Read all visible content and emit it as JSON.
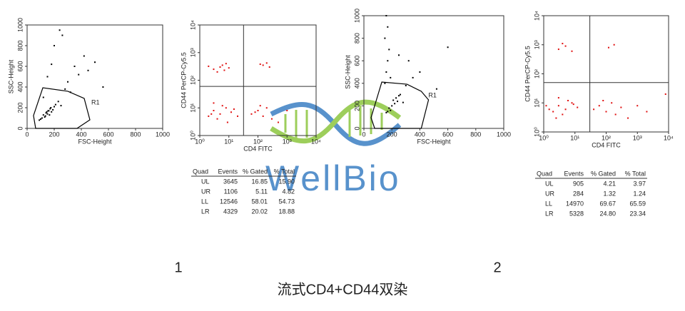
{
  "chart_data": [
    {
      "type": "scatter",
      "x_label": "FSC-Height",
      "y_label": "SSC-Height",
      "color": "#000000",
      "xlim": [
        0,
        1000
      ],
      "ylim": [
        0,
        1000
      ],
      "xticks": [
        0,
        200,
        400,
        600,
        800,
        1000
      ],
      "yticks": [
        0,
        200,
        400,
        600,
        800,
        1000
      ],
      "x": [
        120,
        140,
        160,
        180,
        130,
        150,
        170,
        110,
        190,
        200,
        100,
        145,
        165,
        135,
        210,
        230,
        250,
        90,
        175,
        155,
        300,
        350,
        280,
        420,
        380,
        500,
        200,
        260,
        320,
        150,
        180,
        240,
        450,
        120,
        560
      ],
      "y": [
        130,
        150,
        170,
        160,
        110,
        140,
        190,
        100,
        180,
        210,
        90,
        160,
        130,
        120,
        230,
        260,
        220,
        80,
        200,
        170,
        450,
        600,
        380,
        700,
        520,
        640,
        800,
        900,
        350,
        500,
        620,
        950,
        560,
        300,
        400
      ],
      "gate": {
        "label": "R1",
        "x": [
          47,
          116,
          300,
          421,
          463,
          368,
          63
        ],
        "y": [
          124,
          393,
          359,
          290,
          83,
          0,
          0
        ]
      }
    },
    {
      "type": "scatter",
      "log": true,
      "x_label": "CD4 FITC",
      "y_label": "CD44 PerCP-Cy5.5",
      "color": "#e01010",
      "xlim": [
        1,
        10000
      ],
      "ylim": [
        1,
        10000
      ],
      "xticks": [
        {
          "value": 1,
          "label": "10⁰"
        },
        {
          "value": 10,
          "label": "10¹"
        },
        {
          "value": 100,
          "label": "10²"
        },
        {
          "value": 1000,
          "label": "10³"
        },
        {
          "value": 10000,
          "label": "10⁴"
        }
      ],
      "yticks": [
        {
          "value": 1,
          "label": "10⁰"
        },
        {
          "value": 10,
          "label": "10¹"
        },
        {
          "value": 100,
          "label": "10²"
        },
        {
          "value": 1000,
          "label": "10³"
        },
        {
          "value": 10000,
          "label": "10⁴"
        }
      ],
      "x": [
        3,
        5,
        8,
        4,
        6,
        10,
        2,
        7,
        150,
        200,
        250,
        120,
        2,
        3,
        5,
        8,
        12,
        4,
        6,
        20,
        3,
        9,
        15,
        2.5,
        60,
        100,
        150,
        200,
        300,
        80,
        120,
        500,
        1000
      ],
      "y": [
        250,
        300,
        400,
        200,
        350,
        280,
        320,
        230,
        350,
        420,
        300,
        380,
        5,
        8,
        6,
        10,
        7,
        4,
        12,
        5,
        15,
        3,
        9,
        6,
        6,
        8,
        5,
        10,
        4,
        7,
        12,
        3,
        8
      ],
      "quadrant": {
        "x": 32,
        "y": 60
      }
    },
    {
      "type": "scatter",
      "x_label": "FSC-Height",
      "y_label": "SSC-Height",
      "color": "#000000",
      "xlim": [
        0,
        1000
      ],
      "ylim": [
        0,
        1000
      ],
      "xticks": [
        0,
        200,
        400,
        600,
        800,
        1000
      ],
      "yticks": [
        0,
        200,
        400,
        600,
        800,
        1000
      ],
      "x": [
        180,
        200,
        220,
        240,
        190,
        210,
        230,
        170,
        250,
        260,
        160,
        280,
        150,
        160,
        170,
        180,
        150,
        170,
        160,
        190,
        300,
        350,
        400,
        320,
        250,
        600,
        520
      ],
      "y": [
        180,
        200,
        220,
        240,
        160,
        250,
        270,
        150,
        290,
        300,
        140,
        230,
        400,
        500,
        600,
        700,
        800,
        900,
        1000,
        450,
        380,
        450,
        500,
        600,
        650,
        720,
        350
      ],
      "gate": {
        "label": "R1",
        "x": [
          51,
          128,
          308,
          410,
          462,
          410,
          77
        ],
        "y": [
          95,
          411,
          392,
          329,
          253,
          0,
          0
        ]
      }
    },
    {
      "type": "scatter",
      "log": true,
      "x_label": "CD4 FITC",
      "y_label": "CD44 PerCP-Cy5.5",
      "color": "#e01010",
      "xlim": [
        1,
        10000
      ],
      "ylim": [
        1,
        10000
      ],
      "xticks": [
        {
          "value": 1,
          "label": "10⁰"
        },
        {
          "value": 10,
          "label": "10¹"
        },
        {
          "value": 100,
          "label": "10²"
        },
        {
          "value": 1000,
          "label": "10³"
        },
        {
          "value": 10000,
          "label": "10⁴"
        }
      ],
      "yticks": [
        {
          "value": 1,
          "label": "10⁰"
        },
        {
          "value": 10,
          "label": "10¹"
        },
        {
          "value": 100,
          "label": "10²"
        },
        {
          "value": 1000,
          "label": "10³"
        },
        {
          "value": 10000,
          "label": "10⁴"
        }
      ],
      "x": [
        3,
        5,
        8,
        4,
        120,
        180,
        2,
        3,
        5,
        8,
        12,
        4,
        6,
        2.5,
        3,
        9,
        1.5,
        1.2,
        40,
        60,
        100,
        150,
        200,
        300,
        80,
        500,
        1000,
        2000,
        8000
      ],
      "y": [
        700,
        900,
        600,
        1100,
        800,
        1000,
        5,
        8,
        6,
        10,
        7,
        4,
        12,
        3,
        15,
        9,
        6,
        8,
        6,
        8,
        5,
        10,
        4,
        7,
        12,
        3,
        8,
        5,
        20
      ],
      "quadrant": {
        "x": 30,
        "y": 50
      }
    }
  ],
  "tables": [
    {
      "header": [
        "Quad",
        "Events",
        "% Gated",
        "% Total"
      ],
      "rows": [
        [
          "UL",
          "3645",
          "16.85",
          "15.90"
        ],
        [
          "UR",
          "1106",
          "5.11",
          "4.82"
        ],
        [
          "LL",
          "12546",
          "58.01",
          "54.73"
        ],
        [
          "LR",
          "4329",
          "20.02",
          "18.88"
        ]
      ]
    },
    {
      "header": [
        "Quad",
        "Events",
        "% Gated",
        "% Total"
      ],
      "rows": [
        [
          "UL",
          "905",
          "4.21",
          "3.97"
        ],
        [
          "UR",
          "284",
          "1.32",
          "1.24"
        ],
        [
          "LL",
          "14970",
          "69.67",
          "65.59"
        ],
        [
          "LR",
          "5328",
          "24.80",
          "23.34"
        ]
      ]
    }
  ],
  "panel_labels": [
    "1",
    "2"
  ],
  "caption": "流式CD4+CD44双染",
  "watermark": "WellBio"
}
